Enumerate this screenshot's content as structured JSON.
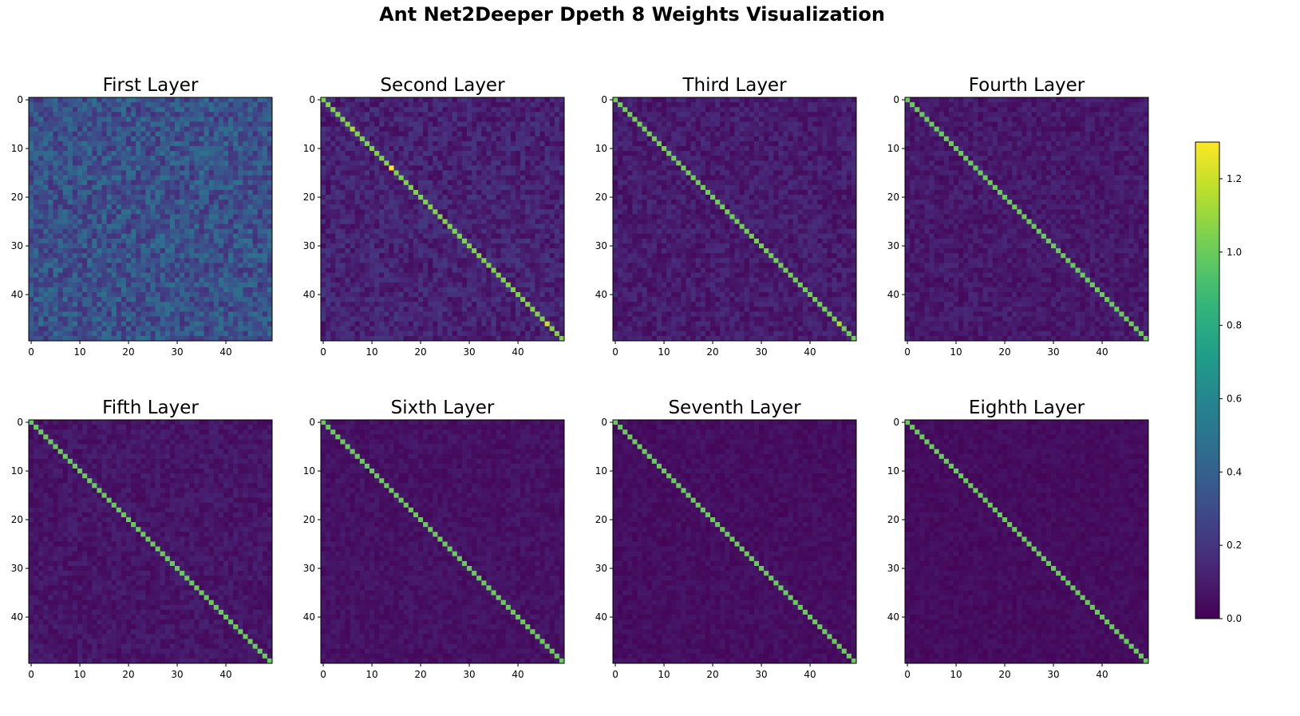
{
  "suptitle": "Ant Net2Deeper Dpeth 8 Weights Visualization",
  "chart_data": {
    "type": "heatmap",
    "colormap": "viridis",
    "matrix_size": [
      50,
      50
    ],
    "panels": [
      {
        "title": "First Layer",
        "diagonal_value": 0.28,
        "offdiag_mean": 0.28,
        "offdiag_spread": 0.16,
        "xticks": [
          0,
          10,
          20,
          30,
          40
        ],
        "yticks": [
          0,
          10,
          20,
          30,
          40
        ]
      },
      {
        "title": "Second Layer",
        "diagonal_value": 1.05,
        "offdiag_mean": 0.1,
        "offdiag_spread": 0.09,
        "peaks": [
          {
            "index": 14,
            "value": 1.3
          },
          {
            "index": 46,
            "value": 1.2
          },
          {
            "index": 6,
            "value": 1.15
          }
        ],
        "xticks": [
          0,
          10,
          20,
          30,
          40
        ],
        "yticks": [
          0,
          10,
          20,
          30,
          40
        ]
      },
      {
        "title": "Third Layer",
        "diagonal_value": 1.02,
        "offdiag_mean": 0.08,
        "offdiag_spread": 0.07,
        "peaks": [
          {
            "index": 46,
            "value": 1.15
          }
        ],
        "xticks": [
          0,
          10,
          20,
          30,
          40
        ],
        "yticks": [
          0,
          10,
          20,
          30,
          40
        ]
      },
      {
        "title": "Fourth Layer",
        "diagonal_value": 1.0,
        "offdiag_mean": 0.07,
        "offdiag_spread": 0.06,
        "xticks": [
          0,
          10,
          20,
          30,
          40
        ],
        "yticks": [
          0,
          10,
          20,
          30,
          40
        ]
      },
      {
        "title": "Fifth Layer",
        "diagonal_value": 1.0,
        "offdiag_mean": 0.06,
        "offdiag_spread": 0.05,
        "xticks": [
          0,
          10,
          20,
          30,
          40
        ],
        "yticks": [
          0,
          10,
          20,
          30,
          40
        ]
      },
      {
        "title": "Sixth Layer",
        "diagonal_value": 1.0,
        "offdiag_mean": 0.05,
        "offdiag_spread": 0.04,
        "xticks": [
          0,
          10,
          20,
          30,
          40
        ],
        "yticks": [
          0,
          10,
          20,
          30,
          40
        ]
      },
      {
        "title": "Seventh Layer",
        "diagonal_value": 1.0,
        "offdiag_mean": 0.04,
        "offdiag_spread": 0.035,
        "xticks": [
          0,
          10,
          20,
          30,
          40
        ],
        "yticks": [
          0,
          10,
          20,
          30,
          40
        ]
      },
      {
        "title": "Eighth Layer",
        "diagonal_value": 1.0,
        "offdiag_mean": 0.035,
        "offdiag_spread": 0.03,
        "xticks": [
          0,
          10,
          20,
          30,
          40
        ],
        "yticks": [
          0,
          10,
          20,
          30,
          40
        ]
      }
    ],
    "colorbar": {
      "vmin": 0.0,
      "vmax": 1.3,
      "ticks": [
        0.0,
        0.2,
        0.4,
        0.6,
        0.8,
        1.0,
        1.2
      ],
      "tick_labels": [
        "0.0",
        "0.2",
        "0.4",
        "0.6",
        "0.8",
        "1.0",
        "1.2"
      ]
    }
  }
}
